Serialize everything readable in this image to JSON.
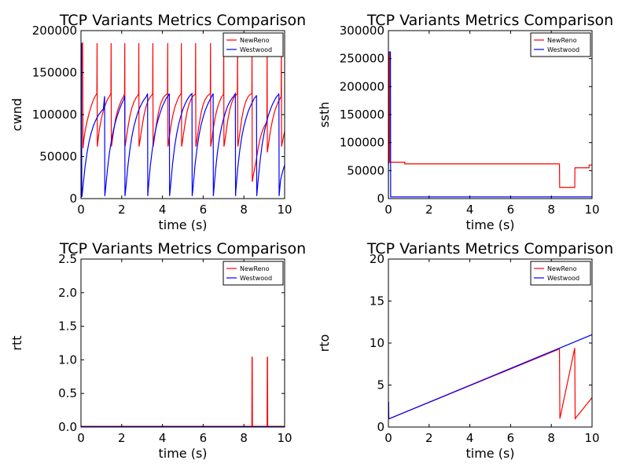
{
  "chart_data": [
    {
      "type": "line",
      "title": "TCP Variants Metrics Comparison",
      "xlabel": "time (s)",
      "ylabel": "cwnd",
      "xlim": [
        0,
        10
      ],
      "ylim": [
        0,
        200000
      ],
      "xticks": [
        0,
        2,
        4,
        6,
        8,
        10
      ],
      "yticks": [
        0,
        50000,
        100000,
        150000,
        200000
      ],
      "legend": "top-right",
      "grid": false,
      "series": [
        {
          "name": "NewReno",
          "color": "#ff0000",
          "x": [
            0,
            0.04,
            0.08,
            0.1,
            0.12,
            0.14,
            0.2,
            0.3,
            0.4,
            0.5,
            0.6,
            0.7,
            0.78,
            0.79,
            0.8,
            0.81,
            0.82,
            0.84,
            0.9,
            1.0,
            1.1,
            1.2,
            1.3,
            1.4,
            1.47,
            1.48,
            1.49,
            1.5,
            1.52,
            1.6,
            1.7,
            1.8,
            1.9,
            2.0,
            2.1,
            2.14,
            2.15,
            2.16,
            2.17,
            2.19,
            2.3,
            2.4,
            2.5,
            2.6,
            2.7,
            2.8,
            2.83,
            2.84,
            2.85,
            2.86,
            2.88,
            3.0,
            3.1,
            3.2,
            3.3,
            3.4,
            3.5,
            3.52,
            3.53,
            3.54,
            3.55,
            3.57,
            3.7,
            3.8,
            3.9,
            4.0,
            4.1,
            4.2,
            4.25,
            4.26,
            4.27,
            4.28,
            4.3,
            4.4,
            4.5,
            4.6,
            4.7,
            4.8,
            4.92,
            4.93,
            4.94,
            4.95,
            4.97,
            5.1,
            5.2,
            5.3,
            5.4,
            5.5,
            5.6,
            5.62,
            5.63,
            5.64,
            5.65,
            5.67,
            5.8,
            5.9,
            6.0,
            6.1,
            6.2,
            6.3,
            6.35,
            6.36,
            6.37,
            6.38,
            6.4,
            6.5,
            6.6,
            6.7,
            6.8,
            6.9,
            7.0,
            7.01,
            7.02,
            7.03,
            7.05,
            7.2,
            7.3,
            7.4,
            7.5,
            7.6,
            7.68,
            7.69,
            7.7,
            7.71,
            7.73,
            7.9,
            8.0,
            8.1,
            8.2,
            8.3,
            8.39,
            8.4,
            8.41,
            8.42,
            8.44,
            8.6,
            8.7,
            8.8,
            8.9,
            9.0,
            9.1,
            9.13,
            9.14,
            9.15,
            9.16,
            9.18,
            9.3,
            9.4,
            9.5,
            9.6,
            9.7,
            9.8,
            9.83,
            9.84,
            9.85,
            9.86,
            9.88,
            10.0
          ],
          "y": [
            0,
            182000,
            186000,
            60000,
            65000,
            70000,
            80000,
            92000,
            102000,
            110000,
            117000,
            122000,
            125000,
            185000,
            62000,
            63000,
            66000,
            70000,
            82000,
            95000,
            105000,
            112000,
            118000,
            122000,
            125000,
            185000,
            62000,
            63000,
            66000,
            80000,
            95000,
            105000,
            112000,
            118000,
            122000,
            125000,
            185000,
            62000,
            63000,
            66000,
            84000,
            98000,
            108000,
            115000,
            120000,
            123000,
            125000,
            185000,
            62000,
            63000,
            66000,
            86000,
            100000,
            110000,
            117000,
            121000,
            124000,
            125000,
            185000,
            62000,
            63000,
            66000,
            88000,
            102000,
            112000,
            118000,
            122000,
            124000,
            125000,
            185000,
            62000,
            63000,
            66000,
            84000,
            98000,
            108000,
            115000,
            121000,
            125000,
            185000,
            62000,
            63000,
            66000,
            88000,
            102000,
            112000,
            118000,
            122000,
            124000,
            125000,
            185000,
            62000,
            63000,
            66000,
            88000,
            102000,
            112000,
            118000,
            122000,
            124000,
            125000,
            185000,
            62000,
            63000,
            66000,
            84000,
            98000,
            108000,
            115000,
            121000,
            124000,
            185000,
            62000,
            63000,
            66000,
            92000,
            105000,
            114000,
            120000,
            123000,
            125000,
            185000,
            62000,
            63000,
            66000,
            96000,
            108000,
            116000,
            121000,
            124000,
            125000,
            185000,
            20000,
            21000,
            25000,
            45000,
            60000,
            72000,
            80000,
            86000,
            90000,
            92000,
            185000,
            55000,
            56000,
            60000,
            80000,
            93000,
            103000,
            110000,
            116000,
            120000,
            122000,
            185000,
            62000,
            63000,
            66000,
            80000
          ]
        },
        {
          "name": "Westwood",
          "color": "#0000ff",
          "x": [
            0,
            0.02,
            0.04,
            0.06,
            0.1,
            0.2,
            0.3,
            0.4,
            0.5,
            0.6,
            0.7,
            0.8,
            0.9,
            1.0,
            1.1,
            1.16,
            1.17,
            1.2,
            1.3,
            1.4,
            1.5,
            1.6,
            1.7,
            1.8,
            1.9,
            2.0,
            2.1,
            2.15,
            2.16,
            2.2,
            2.3,
            2.4,
            2.5,
            2.6,
            2.7,
            2.8,
            2.9,
            3.0,
            3.1,
            3.2,
            3.27,
            3.28,
            3.3,
            3.4,
            3.5,
            3.6,
            3.7,
            3.8,
            3.9,
            4.0,
            4.1,
            4.2,
            4.3,
            4.34,
            4.35,
            4.4,
            4.5,
            4.6,
            4.7,
            4.8,
            4.9,
            5.0,
            5.1,
            5.2,
            5.3,
            5.4,
            5.45,
            5.46,
            5.5,
            5.6,
            5.7,
            5.8,
            5.9,
            6.0,
            6.1,
            6.2,
            6.3,
            6.4,
            6.49,
            6.5,
            6.6,
            6.7,
            6.8,
            6.9,
            7.0,
            7.1,
            7.2,
            7.3,
            7.4,
            7.5,
            7.58,
            7.59,
            7.6,
            7.7,
            7.8,
            7.9,
            8.0,
            8.1,
            8.2,
            8.3,
            8.5,
            8.6,
            8.62,
            8.63,
            8.7,
            8.8,
            8.9,
            9.0,
            9.1,
            9.2,
            9.3,
            9.4,
            9.5,
            9.6,
            9.7,
            9.72,
            9.73,
            9.8,
            9.9,
            10.0
          ],
          "y": [
            0,
            185000,
            2000,
            5000,
            15000,
            38000,
            55000,
            68000,
            78000,
            86000,
            92000,
            97000,
            101000,
            104000,
            107000,
            122000,
            3000,
            10000,
            35000,
            55000,
            70000,
            82000,
            92000,
            100000,
            107000,
            113000,
            118000,
            122000,
            3000,
            12000,
            38000,
            58000,
            74000,
            86000,
            95000,
            103000,
            109000,
            114000,
            118000,
            121000,
            125000,
            3000,
            10000,
            38000,
            58000,
            74000,
            86000,
            95000,
            103000,
            110000,
            115000,
            120000,
            123000,
            125000,
            3000,
            15000,
            42000,
            62000,
            77000,
            89000,
            98000,
            106000,
            112000,
            117000,
            121000,
            124000,
            125000,
            3000,
            12000,
            40000,
            60000,
            76000,
            88000,
            97000,
            105000,
            111000,
            116000,
            121000,
            125000,
            3000,
            32000,
            55000,
            72000,
            85000,
            95000,
            103000,
            110000,
            115000,
            119000,
            122000,
            125000,
            3000,
            8000,
            37000,
            58000,
            74000,
            86000,
            95000,
            103000,
            109000,
            119000,
            122000,
            123000,
            3000,
            22000,
            46000,
            65000,
            79000,
            90000,
            99000,
            106000,
            112000,
            117000,
            121000,
            124000,
            125000,
            3000,
            22000,
            32000,
            40000
          ]
        }
      ]
    },
    {
      "type": "line",
      "title": "TCP Variants Metrics Comparison",
      "xlabel": "time (s)",
      "ylabel": "ssth",
      "xlim": [
        0,
        10
      ],
      "ylim": [
        0,
        300000
      ],
      "xticks": [
        0,
        2,
        4,
        6,
        8,
        10
      ],
      "yticks": [
        0,
        50000,
        100000,
        150000,
        200000,
        250000,
        300000
      ],
      "legend": "top-right",
      "grid": false,
      "series": [
        {
          "name": "NewReno",
          "color": "#ff0000",
          "x": [
            0,
            0.02,
            0.03,
            0.06,
            0.07,
            0.8,
            0.81,
            0.8,
            0.81,
            8.4,
            8.41,
            9.15,
            9.16,
            9.85,
            9.86,
            10.0
          ],
          "y": [
            63000,
            63000,
            262000,
            262000,
            65000,
            65000,
            65000,
            62000,
            62000,
            62000,
            20000,
            20000,
            55000,
            55000,
            60000,
            60000
          ]
        },
        {
          "name": "Westwood",
          "color": "#0000ff",
          "x": [
            0,
            0.01,
            0.02,
            0.1,
            0.11,
            10.0
          ],
          "y": [
            0,
            262000,
            262000,
            262000,
            3000,
            3000
          ]
        }
      ]
    },
    {
      "type": "line",
      "title": "TCP Variants Metrics Comparison",
      "xlabel": "time (s)",
      "ylabel": "rtt",
      "xlim": [
        0,
        10
      ],
      "ylim": [
        0,
        2.5
      ],
      "xticks": [
        0,
        2,
        4,
        6,
        8,
        10
      ],
      "yticks": [
        0.0,
        0.5,
        1.0,
        1.5,
        2.0,
        2.5
      ],
      "legend": "top-right",
      "grid": false,
      "series": [
        {
          "name": "NewReno",
          "color": "#ff0000",
          "x": [
            0,
            8.39,
            8.4,
            8.41,
            8.42,
            9.14,
            9.15,
            9.16,
            9.17,
            10.0
          ],
          "y": [
            0.01,
            0.01,
            1.04,
            1.04,
            0.01,
            0.01,
            1.04,
            1.04,
            0.01,
            0.01
          ]
        },
        {
          "name": "Westwood",
          "color": "#0000ff",
          "x": [
            0,
            10.0
          ],
          "y": [
            0.005,
            0.005
          ]
        }
      ]
    },
    {
      "type": "line",
      "title": "TCP Variants Metrics Comparison",
      "xlabel": "time (s)",
      "ylabel": "rto",
      "xlim": [
        0,
        10
      ],
      "ylim": [
        0,
        20
      ],
      "xticks": [
        0,
        2,
        4,
        6,
        8,
        10
      ],
      "yticks": [
        0,
        5,
        10,
        15,
        20
      ],
      "legend": "top-right",
      "grid": false,
      "series": [
        {
          "name": "NewReno",
          "color": "#ff0000",
          "x": [
            0,
            0.01,
            0.02,
            0.05,
            8.4,
            8.42,
            9.15,
            9.17,
            10.0
          ],
          "y": [
            1.0,
            3.0,
            1.0,
            1.0,
            9.3,
            1.0,
            9.4,
            1.0,
            3.5
          ]
        },
        {
          "name": "Westwood",
          "color": "#0000ff",
          "x": [
            0,
            0.01,
            0.02,
            0.05,
            10.0
          ],
          "y": [
            1.0,
            3.0,
            1.0,
            1.0,
            11.0
          ]
        }
      ]
    }
  ]
}
